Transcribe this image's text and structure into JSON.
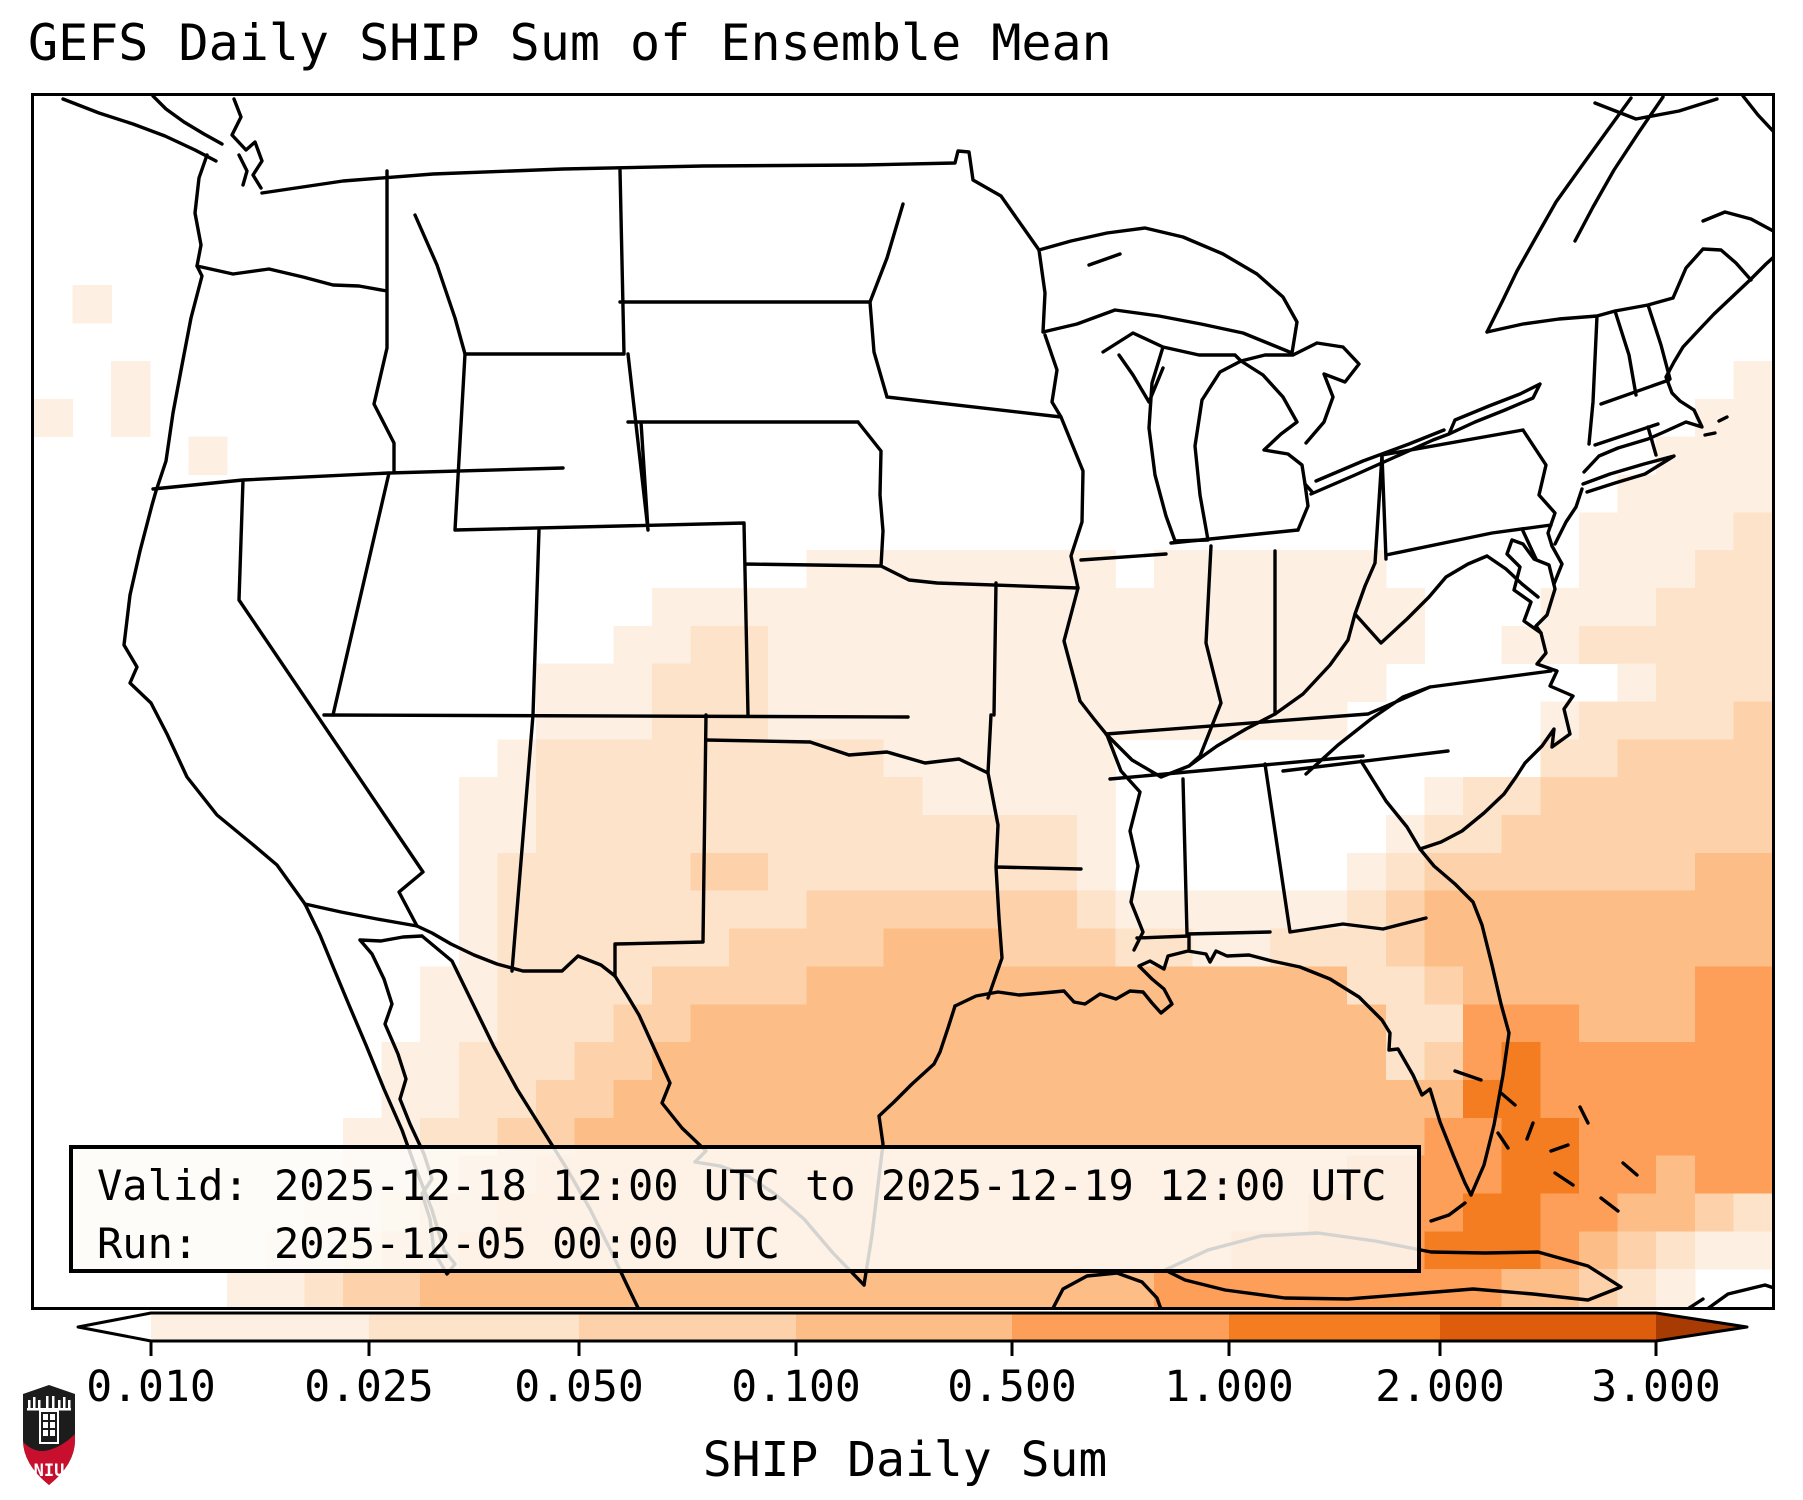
{
  "title": "GEFS Daily SHIP Sum of Ensemble Mean",
  "info_box": {
    "valid_line": "Valid: 2025-12-18 12:00 UTC to 2025-12-19 12:00 UTC",
    "run_line": "Run:   2025-12-05 00:00 UTC"
  },
  "colorbar": {
    "label": "SHIP Daily Sum",
    "tick_labels": [
      "0.010",
      "0.025",
      "0.050",
      "0.100",
      "0.500",
      "1.000",
      "2.000",
      "3.000"
    ],
    "under_color": "#ffffff",
    "over_color": "#a83b04",
    "segment_colors": [
      "#fdf0e2",
      "#fde3c9",
      "#fdd2ab",
      "#fdbd86",
      "#fd9f58",
      "#f57d21",
      "#dd5d0d"
    ]
  },
  "logo": {
    "text": "NIU",
    "shield_black": "#1c1c1c",
    "shield_red": "#c8102e"
  },
  "chart_data": {
    "type": "heatmap",
    "title": "GEFS Daily SHIP Sum of Ensemble Mean",
    "variable": "SHIP Daily Sum (GEFS ensemble mean)",
    "valid": "2025-12-18 12:00 UTC to 2025-12-19 12:00 UTC",
    "run": "2025-12-05 00:00 UTC",
    "colormap": "Oranges",
    "levels": [
      0.01,
      0.025,
      0.05,
      0.1,
      0.5,
      1.0,
      2.0,
      3.0
    ],
    "level_colors": [
      "#ffffff",
      "#fdf0e2",
      "#fde3c9",
      "#fdd2ab",
      "#fdbd86",
      "#fd9f58",
      "#f57d21",
      "#dd5d0d",
      "#a83b04"
    ],
    "legend_note": "grid cell digit k = shading between levels[k-1] and levels[k]; 0 = below 0.010 (white)",
    "grid_cols": 45,
    "grid_rows": 32,
    "grid_levels": [
      "000000000000000000000000000000000000000000000",
      "000000000000000000000000000000000000000000000",
      "000000000000000000000000000000000000000000000",
      "000000000000000000000000000000000000000000000",
      "000000000000000000000000000000000000000000000",
      "010000000000000000000000000000000000000000000",
      "000000000000000000000000000000000000000000000",
      "001000000000000000000000000000000000000000001",
      "101000000000000000000000000000000000000000011",
      "000010000000000000000000000000000000000000111",
      "000000000000000000000000000000000000000001111",
      "000000000000000000000000000000000000000011112",
      "000000000000000000001111111101111110000011122",
      "000000000000000011111111111111111111000111222",
      "000000000000000112211111111111111111001122222",
      "000000000000011122211111111111111110000001222",
      "000000000000011122211111111111111100000122223",
      "000000000000122222222211111100000000000223333",
      "000000000001122222222221111100000000122333333",
      "000000000001122222222222222100000001223333333",
      "000000000001222223322222222100000012333333344",
      "000000000001222222223333333211111123444444444",
      "000000000001222222333344433322112223444444444",
      "000000000011222233334444444444444422344444455",
      "000000000011222334444444444444444442255544455",
      "000000000112223344444444444444444442356555555",
      "000000000112233444444444444444444444466555555",
      "000000001122334444444444444444444444556655555",
      "000000001123344444444444444444444455556655455",
      "000000011233444444444444444444444555566554432",
      "000000112334444444444444444444455555666543211",
      "000001123344444444444444444445555555554432100"
    ]
  }
}
